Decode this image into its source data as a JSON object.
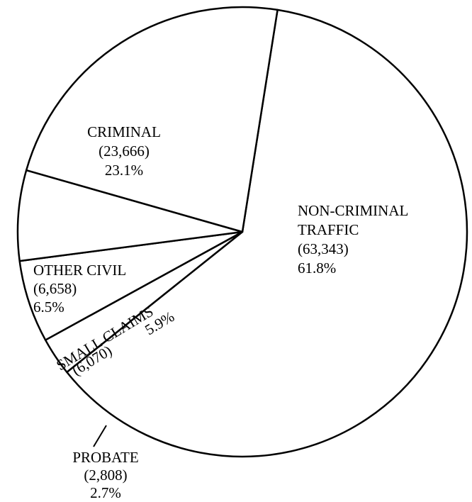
{
  "chart_data": {
    "type": "pie",
    "title": "",
    "start_angle_deg": 9,
    "direction": "clockwise",
    "slices": [
      {
        "label": "NON-CRIMINAL TRAFFIC",
        "lines": [
          "NON-CRIMINAL",
          "TRAFFIC"
        ],
        "count": "(63,343)",
        "value": 63343,
        "percent": "61.8%"
      },
      {
        "label": "PROBATE",
        "lines": [
          "PROBATE"
        ],
        "count": "(2,808)",
        "value": 2808,
        "percent": "2.7%"
      },
      {
        "label": "SMALL CLAIMS",
        "lines": [
          "SMALL CLAIMS"
        ],
        "count": "(6,070)",
        "value": 6070,
        "percent": "5.9%"
      },
      {
        "label": "OTHER CIVIL",
        "lines": [
          "OTHER CIVIL"
        ],
        "count": "(6,658)",
        "value": 6658,
        "percent": "6.5%"
      },
      {
        "label": "CRIMINAL",
        "lines": [
          "CRIMINAL"
        ],
        "count": "(23,666)",
        "value": 23666,
        "percent": "23.1%"
      }
    ],
    "colors": {
      "fill": "#ffffff",
      "stroke": "#000000"
    }
  }
}
